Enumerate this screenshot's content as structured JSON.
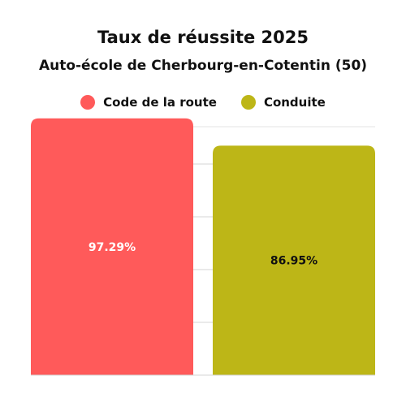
{
  "chart_data": {
    "type": "bar",
    "title": "Taux de réussite 2025",
    "subtitle": "Auto-école de Cherbourg-en-Cotentin (50)",
    "categories": [
      "Code de la route",
      "Conduite"
    ],
    "series": [
      {
        "name": "Code de la route",
        "value": 97.29,
        "label": "97.29%",
        "color": "#ff5a5a",
        "label_color": "#ffffff"
      },
      {
        "name": "Conduite",
        "value": 86.95,
        "label": "86.95%",
        "color": "#bdb617",
        "label_color": "#111111"
      }
    ],
    "ylim": [
      0,
      100
    ],
    "legend_position": "top-center",
    "grid": true
  }
}
